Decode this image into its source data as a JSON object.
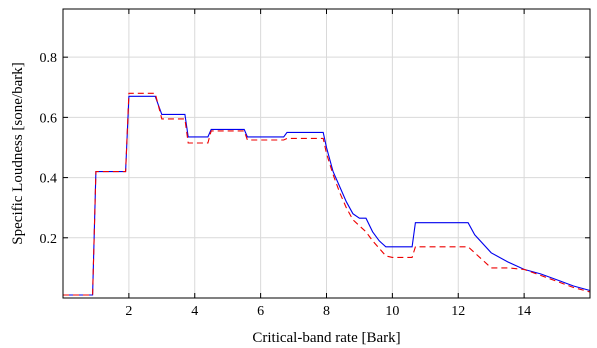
{
  "chart_data": {
    "type": "line",
    "xlabel": "Critical-band rate [Bark]",
    "ylabel": "Specific Loudness [sone/bark]",
    "xlim": [
      0,
      16
    ],
    "ylim": [
      0,
      0.96
    ],
    "xticks": [
      2,
      4,
      6,
      8,
      10,
      12,
      14
    ],
    "yticks": [
      0.2,
      0.4,
      0.6,
      0.8
    ],
    "xtick_labels": [
      "2",
      "4",
      "6",
      "8",
      "10",
      "12",
      "14"
    ],
    "ytick_labels": [
      "0.2",
      "0.4",
      "0.6",
      "0.8"
    ],
    "grid": true,
    "series": [
      {
        "color": "#0000ee",
        "style": "solid",
        "x": [
          0,
          0.9,
          1.0,
          1.9,
          2.0,
          2.8,
          3.0,
          3.7,
          3.8,
          4.4,
          4.5,
          5.5,
          5.6,
          6.7,
          6.8,
          7.9,
          8.0,
          8.2,
          8.4,
          8.6,
          8.8,
          9.0,
          9.2,
          9.4,
          9.6,
          9.8,
          10.0,
          10.1,
          10.6,
          10.7,
          12.3,
          12.5,
          13.0,
          13.5,
          14.0,
          14.5,
          15.0,
          15.5,
          16.0
        ],
        "y": [
          0.01,
          0.01,
          0.42,
          0.42,
          0.67,
          0.67,
          0.61,
          0.61,
          0.535,
          0.535,
          0.56,
          0.56,
          0.535,
          0.535,
          0.55,
          0.55,
          0.5,
          0.42,
          0.37,
          0.32,
          0.28,
          0.265,
          0.265,
          0.22,
          0.19,
          0.17,
          0.17,
          0.17,
          0.17,
          0.25,
          0.25,
          0.21,
          0.15,
          0.12,
          0.095,
          0.08,
          0.06,
          0.04,
          0.025
        ]
      },
      {
        "color": "#ee0000",
        "style": "dashed",
        "x": [
          0,
          0.9,
          1.0,
          1.9,
          2.0,
          2.8,
          3.0,
          3.7,
          3.8,
          4.4,
          4.5,
          5.5,
          5.6,
          6.7,
          6.8,
          7.9,
          8.0,
          8.2,
          8.4,
          8.6,
          8.8,
          9.0,
          9.2,
          9.4,
          9.6,
          9.8,
          10.0,
          10.1,
          10.6,
          10.7,
          12.3,
          12.5,
          13.0,
          13.5,
          14.0,
          14.5,
          15.0,
          15.5,
          16.0
        ],
        "y": [
          0.01,
          0.01,
          0.42,
          0.42,
          0.68,
          0.68,
          0.595,
          0.595,
          0.515,
          0.515,
          0.555,
          0.555,
          0.525,
          0.525,
          0.53,
          0.53,
          0.48,
          0.41,
          0.35,
          0.3,
          0.26,
          0.24,
          0.22,
          0.19,
          0.165,
          0.14,
          0.135,
          0.135,
          0.135,
          0.17,
          0.17,
          0.15,
          0.1,
          0.1,
          0.095,
          0.075,
          0.055,
          0.035,
          0.02
        ]
      }
    ]
  }
}
